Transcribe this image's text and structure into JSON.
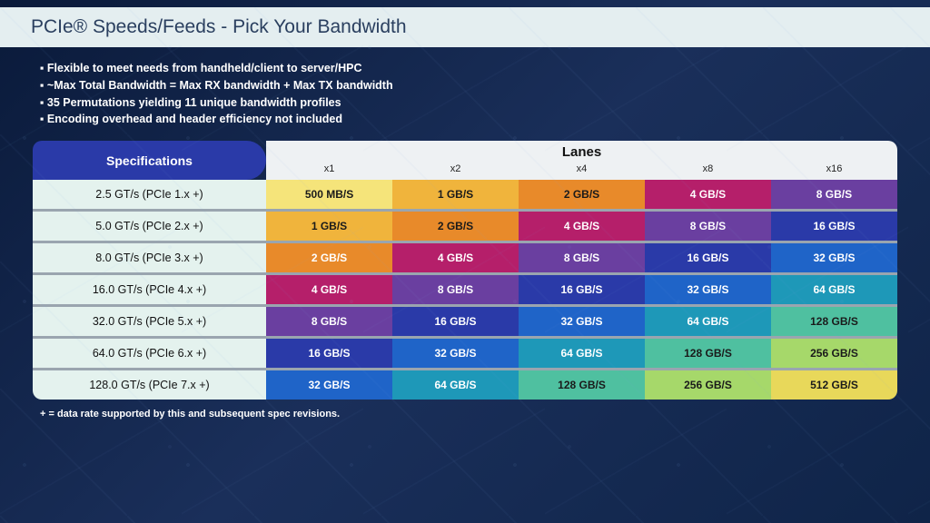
{
  "title": "PCIe® Speeds/Feeds - Pick Your Bandwidth",
  "bullets": [
    "Flexible to meet needs from handheld/client to server/HPC",
    "~Max Total Bandwidth = Max RX bandwidth + Max TX bandwidth",
    "35 Permutations yielding 11 unique bandwidth profiles",
    "Encoding overhead and header efficiency not included"
  ],
  "spec_header": "Specifications",
  "lanes_header": "Lanes",
  "lane_labels": [
    "x1",
    "x2",
    "x4",
    "x8",
    "x16"
  ],
  "specs": [
    "2.5 GT/s (PCIe 1.x +)",
    "5.0 GT/s (PCIe 2.x +)",
    "8.0 GT/s (PCIe 3.x +)",
    "16.0 GT/s (PCIe 4.x +)",
    "32.0 GT/s (PCIe 5.x +)",
    "64.0 GT/s (PCIe 6.x +)",
    "128.0 GT/s (PCIe 7.x +)"
  ],
  "bw_values": [
    [
      "500 MB/S",
      "1 GB/S",
      "2 GB/S",
      "4 GB/S",
      "8 GB/S"
    ],
    [
      "1 GB/S",
      "2 GB/S",
      "4 GB/S",
      "8 GB/S",
      "16 GB/S"
    ],
    [
      "2 GB/S",
      "4 GB/S",
      "8 GB/S",
      "16 GB/S",
      "32 GB/S"
    ],
    [
      "4 GB/S",
      "8 GB/S",
      "16 GB/S",
      "32 GB/S",
      "64 GB/S"
    ],
    [
      "8 GB/S",
      "16 GB/S",
      "32 GB/S",
      "64 GB/S",
      "128 GB/S"
    ],
    [
      "16 GB/S",
      "32 GB/S",
      "64 GB/S",
      "128 GB/S",
      "256 GB/S"
    ],
    [
      "32 GB/S",
      "64 GB/S",
      "128 GB/S",
      "256 GB/S",
      "512 GB/S"
    ]
  ],
  "bw_bg": [
    [
      "#f5e47a",
      "#f0b43c",
      "#e88a2a",
      "#b51f6a",
      "#6a3fa0"
    ],
    [
      "#f0b43c",
      "#e88a2a",
      "#b51f6a",
      "#6a3fa0",
      "#2a3aa8"
    ],
    [
      "#e88a2a",
      "#b51f6a",
      "#6a3fa0",
      "#2a3aa8",
      "#1f64c8"
    ],
    [
      "#b51f6a",
      "#6a3fa0",
      "#2a3aa8",
      "#1f64c8",
      "#1e98b8"
    ],
    [
      "#6a3fa0",
      "#2a3aa8",
      "#1f64c8",
      "#1e98b8",
      "#4fc0a0"
    ],
    [
      "#2a3aa8",
      "#1f64c8",
      "#1e98b8",
      "#4fc0a0",
      "#a6d86a"
    ],
    [
      "#1f64c8",
      "#1e98b8",
      "#4fc0a0",
      "#a6d86a",
      "#e8d85a"
    ]
  ],
  "bw_fg": [
    [
      "#1a1a1a",
      "#1a1a1a",
      "#1a1a1a",
      "#ffffff",
      "#ffffff"
    ],
    [
      "#1a1a1a",
      "#1a1a1a",
      "#ffffff",
      "#ffffff",
      "#ffffff"
    ],
    [
      "#ffffff",
      "#ffffff",
      "#ffffff",
      "#ffffff",
      "#ffffff"
    ],
    [
      "#ffffff",
      "#ffffff",
      "#ffffff",
      "#ffffff",
      "#ffffff"
    ],
    [
      "#ffffff",
      "#ffffff",
      "#ffffff",
      "#ffffff",
      "#1a1a1a"
    ],
    [
      "#ffffff",
      "#ffffff",
      "#ffffff",
      "#1a1a1a",
      "#1a1a1a"
    ],
    [
      "#ffffff",
      "#ffffff",
      "#1a1a1a",
      "#1a1a1a",
      "#1a1a1a"
    ]
  ],
  "footnote": "+ = data rate supported by this and subsequent spec revisions."
}
